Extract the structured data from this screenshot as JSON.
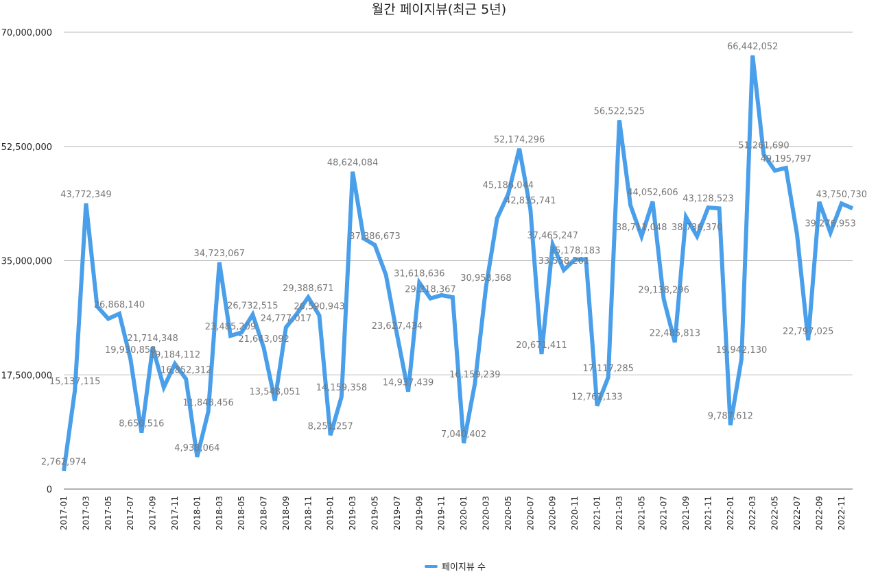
{
  "chart_data": {
    "type": "line",
    "title": "월간 페이지뷰(최근 5년)",
    "xlabel": "",
    "ylabel": "",
    "ylim": [
      0,
      70000000
    ],
    "yticks": [
      0,
      17500000,
      35000000,
      52500000,
      70000000
    ],
    "ytick_labels": [
      "0",
      "17,500,000",
      "35,000,000",
      "52,500,000",
      "70,000,000"
    ],
    "x": [
      "2017-01",
      "2017-02",
      "2017-03",
      "2017-04",
      "2017-05",
      "2017-06",
      "2017-07",
      "2017-08",
      "2017-09",
      "2017-10",
      "2017-11",
      "2017-12",
      "2018-01",
      "2018-02",
      "2018-03",
      "2018-04",
      "2018-05",
      "2018-06",
      "2018-07",
      "2018-08",
      "2018-09",
      "2018-10",
      "2018-11",
      "2018-12",
      "2019-01",
      "2019-02",
      "2019-03",
      "2019-04",
      "2019-05",
      "2019-06",
      "2019-07",
      "2019-08",
      "2019-09",
      "2019-10",
      "2019-11",
      "2019-12",
      "2020-01",
      "2020-02",
      "2020-03",
      "2020-04",
      "2020-05",
      "2020-06",
      "2020-07",
      "2020-08",
      "2020-09",
      "2020-10",
      "2020-11",
      "2020-12",
      "2021-01",
      "2021-02",
      "2021-03",
      "2021-04",
      "2021-05",
      "2021-06",
      "2021-07",
      "2021-08",
      "2021-09",
      "2021-10",
      "2021-11",
      "2021-12",
      "2022-01",
      "2022-02",
      "2022-03",
      "2022-04",
      "2022-05",
      "2022-06",
      "2022-07",
      "2022-08",
      "2022-09",
      "2022-10",
      "2022-11",
      "2022-12"
    ],
    "xtick_labels": [
      "2017-01",
      "2017-03",
      "2017-05",
      "2017-07",
      "2017-09",
      "2017-11",
      "2018-01",
      "2018-03",
      "2018-05",
      "2018-07",
      "2018-09",
      "2018-11",
      "2019-01",
      "2019-03",
      "2019-05",
      "2019-07",
      "2019-09",
      "2019-11",
      "2020-01",
      "2020-03",
      "2020-05",
      "2020-07",
      "2020-09",
      "2020-11",
      "2021-01",
      "2021-03",
      "2021-05",
      "2021-07",
      "2021-09",
      "2021-11",
      "2022-01",
      "2022-03",
      "2022-05",
      "2022-07",
      "2022-09",
      "2022-11"
    ],
    "series": [
      {
        "name": "페이지뷰 수",
        "color": "#4A9FEA",
        "values": [
          2762974,
          15137115,
          43772349,
          28000000,
          26100000,
          26868140,
          19930858,
          8650516,
          21714348,
          15600000,
          19184112,
          16852312,
          4938064,
          11848456,
          34723067,
          23485209,
          24000000,
          26732515,
          21643092,
          13548051,
          24777017,
          26900000,
          29388671,
          26590943,
          8251257,
          14159358,
          48624084,
          38400000,
          37386673,
          32800000,
          23627434,
          14937439,
          31618636,
          29218367,
          29700000,
          29400000,
          7040402,
          16159239,
          30958368,
          41500000,
          45186044,
          52174296,
          42835741,
          20671411,
          37465247,
          33558261,
          35178183,
          35178183,
          12761133,
          17117285,
          56522525,
          43500000,
          38711048,
          44052606,
          29138296,
          22485813,
          41700000,
          38736370,
          43128523,
          43000000,
          9787612,
          19942130,
          66442052,
          51261690,
          48800000,
          49195797,
          39000000,
          22797025,
          44000000,
          39276953,
          43750730,
          43000000
        ],
        "labels": [
          "2,762,974",
          "15,137,115",
          "43,772,349",
          "",
          "",
          "26,868,140",
          "19,930,858",
          "8,650,516",
          "21,714,348",
          "",
          "19,184,112",
          "16,852,312",
          "4,938,064",
          "11,848,456",
          "34,723,067",
          "23,485,209",
          "",
          "26,732,515",
          "21,643,092",
          "13,548,051",
          "24,777,017",
          "",
          "29,388,671",
          "26,590,943",
          "8,251,257",
          "14,159,358",
          "48,624,084",
          "",
          "37,386,673",
          "",
          "23,627,434",
          "14,937,439",
          "31,618,636",
          "29,218,367",
          "",
          "",
          "7,040,402",
          "16,159,239",
          "30,958,368",
          "",
          "45,186,044",
          "52,174,296",
          "42,835,741",
          "20,671,411",
          "37,465,247",
          "33,558,261",
          "35,178,183",
          "",
          "12,761,133",
          "17,117,285",
          "56,522,525",
          "",
          "38,711,048",
          "44,052,606",
          "29,138,296",
          "22,485,813",
          "",
          "38,736,370",
          "43,128,523",
          "",
          "9,787,612",
          "19,942,130",
          "66,442,052",
          "51,261,690",
          "",
          "49,195,797",
          "",
          "22,797,025",
          "",
          "39,276,953",
          "43,750,730",
          ""
        ]
      }
    ],
    "grid": true,
    "legend_position": "bottom-center"
  }
}
